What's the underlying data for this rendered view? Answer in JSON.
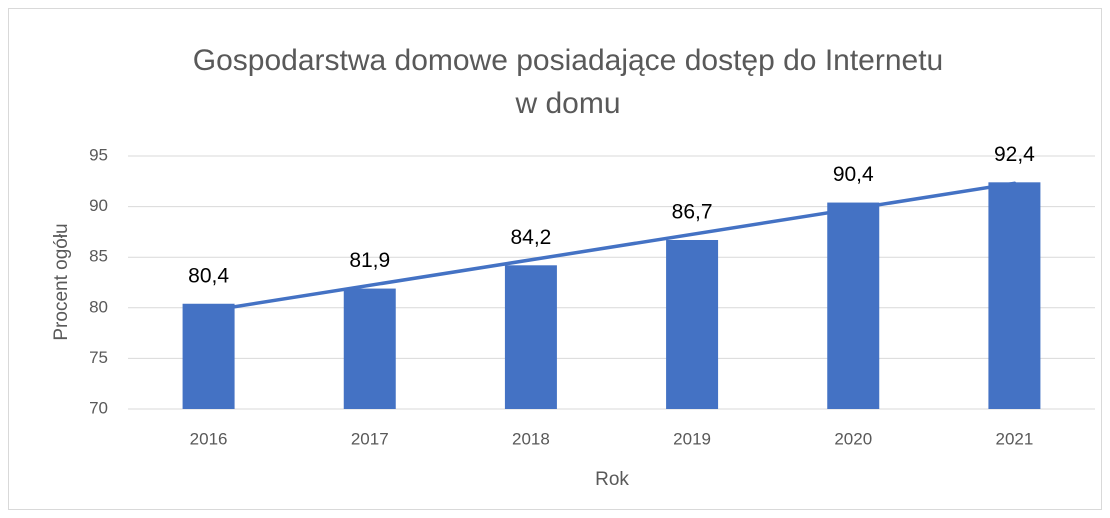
{
  "chart_data": {
    "type": "bar",
    "title": [
      "Gospodarstwa domowe posiadające dostęp do Internetu",
      "w domu"
    ],
    "x_label": "Rok",
    "y_label": "Procent ogółu",
    "categories": [
      "2016",
      "2017",
      "2018",
      "2019",
      "2020",
      "2021"
    ],
    "values": [
      80.4,
      81.9,
      84.2,
      86.7,
      90.4,
      92.4
    ],
    "value_labels": [
      "80,4",
      "81,9",
      "84,2",
      "86,7",
      "90,4",
      "92,4"
    ],
    "color": "#4472c4",
    "trendline": {
      "values": [
        79.7,
        92.3
      ],
      "color": "#4472c4"
    },
    "ylim": [
      70,
      95
    ],
    "yticks": [
      70,
      75,
      80,
      85,
      90,
      95
    ],
    "grid": true
  }
}
